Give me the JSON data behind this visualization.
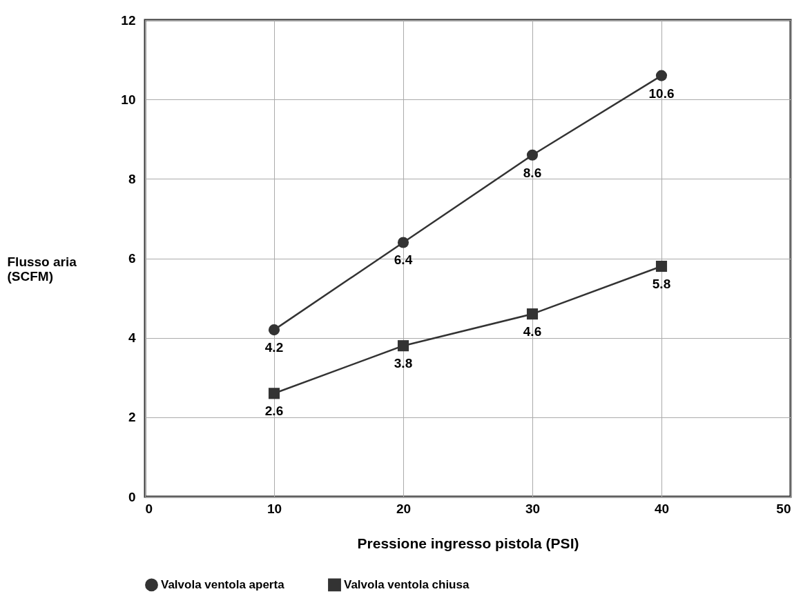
{
  "chart_data": {
    "type": "line",
    "xlabel": "Pressione ingresso pistola (PSI)",
    "ylabel": "Flusso aria\n(SCFM)",
    "x": [
      10,
      20,
      30,
      40
    ],
    "series": [
      {
        "name": "Valvola ventola aperta",
        "color": "#333333",
        "marker": "circle",
        "values": [
          4.2,
          6.4,
          8.6,
          10.6
        ]
      },
      {
        "name": "Valvola ventola chiusa",
        "color": "#333333",
        "marker": "square",
        "values": [
          2.6,
          3.8,
          4.6,
          5.8
        ]
      }
    ],
    "xlim": [
      0,
      50
    ],
    "xticks": [
      0,
      10,
      20,
      30,
      40,
      50
    ],
    "ylim": [
      0,
      12
    ],
    "yticks": [
      0,
      2,
      4,
      6,
      8,
      10,
      12
    ],
    "grid": true,
    "legend": "bottom",
    "data_labels": true
  }
}
